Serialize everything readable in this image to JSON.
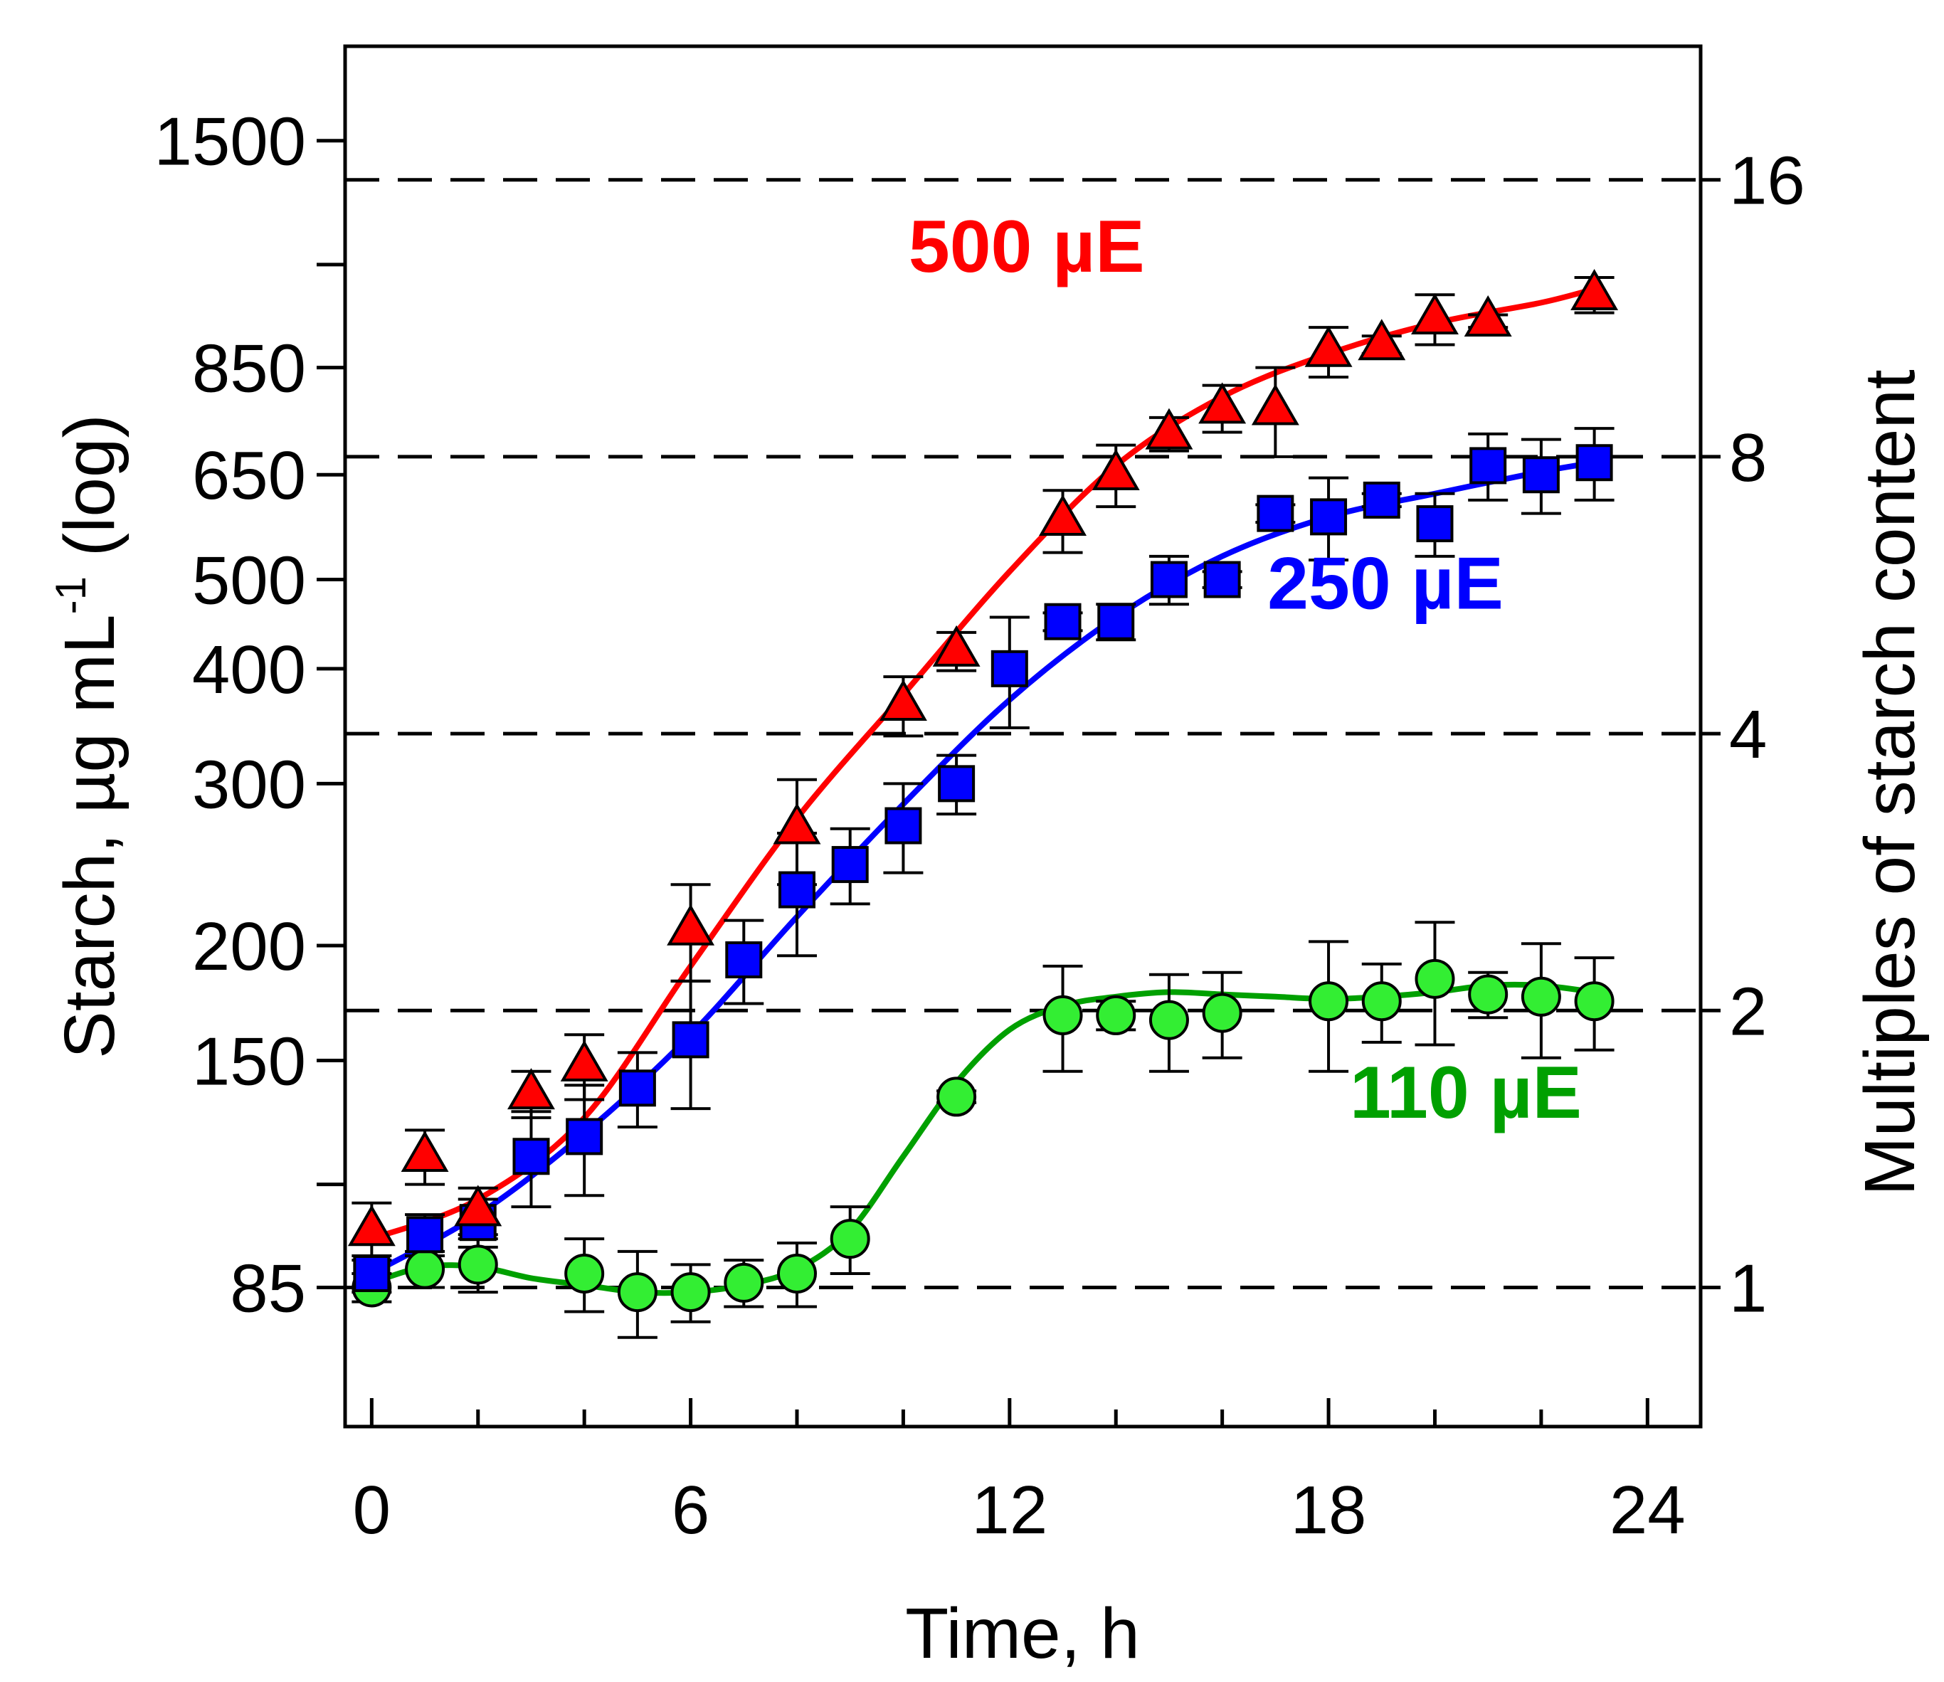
{
  "chart_data": {
    "type": "scatter",
    "xlabel": "Time, h",
    "ylabel": {
      "main": "Starch, µg mL",
      "sup": "-1",
      "tail": " (log)"
    },
    "y2label": "Multiples of starch content",
    "xlim": [
      -0.5,
      25
    ],
    "ylim": [
      60,
      1900
    ],
    "yscale": "log",
    "x_ticks": [
      0,
      6,
      12,
      18,
      24
    ],
    "x_minor_ticks": [
      0,
      2,
      4,
      6,
      8,
      10,
      12,
      14,
      16,
      18,
      20,
      22,
      24
    ],
    "y_ticks": [
      {
        "value": 85,
        "label": "85"
      },
      {
        "value": 150,
        "label": "150"
      },
      {
        "value": 200,
        "label": "200"
      },
      {
        "value": 300,
        "label": "300"
      },
      {
        "value": 400,
        "label": "400"
      },
      {
        "value": 500,
        "label": "500"
      },
      {
        "value": 650,
        "label": "650"
      },
      {
        "value": 850,
        "label": "850"
      },
      {
        "value": 1500,
        "label": "1500"
      }
    ],
    "y_minor_ticks": [
      110,
      1100
    ],
    "y2_ticks": [
      {
        "multiple": 1,
        "label": "1"
      },
      {
        "multiple": 2,
        "label": "2"
      },
      {
        "multiple": 4,
        "label": "4"
      },
      {
        "multiple": 8,
        "label": "8"
      },
      {
        "multiple": 16,
        "label": "16"
      }
    ],
    "y2_base": 85,
    "reference_lines": [
      85,
      170,
      340,
      680,
      1360
    ],
    "series": [
      {
        "name": "500 µE",
        "color": "#ff0000",
        "marker": "triangle",
        "label_anchor": {
          "x": 10.1,
          "y": 1080
        },
        "x": [
          0,
          1,
          2,
          3,
          4,
          6,
          8,
          10,
          11,
          13,
          14,
          15,
          16,
          17,
          18,
          19,
          20,
          21,
          23
        ],
        "values": [
          98,
          118,
          103,
          138,
          148,
          208,
          268,
          365,
          418,
          580,
          650,
          720,
          768,
          765,
          885,
          900,
          960,
          955,
          1020
        ],
        "errors": [
          7,
          8,
          6,
          8,
          12,
          25,
          35,
          27,
          20,
          45,
          50,
          30,
          45,
          85,
          55,
          20,
          60,
          15,
          45
        ],
        "fit": [
          [
            0,
            96
          ],
          [
            2,
            106
          ],
          [
            4,
            130
          ],
          [
            6,
            190
          ],
          [
            8,
            275
          ],
          [
            10,
            375
          ],
          [
            12,
            510
          ],
          [
            14,
            665
          ],
          [
            16,
            790
          ],
          [
            18,
            880
          ],
          [
            20,
            950
          ],
          [
            22,
            1000
          ],
          [
            23,
            1035
          ]
        ]
      },
      {
        "name": "250 µE",
        "color": "#0000ff",
        "marker": "square",
        "label_anchor": {
          "x": 16.85,
          "y": 465
        },
        "x": [
          0,
          1,
          2,
          3,
          4,
          5,
          6,
          7,
          8,
          9,
          10,
          11,
          12,
          13,
          14,
          15,
          16,
          17,
          18,
          19,
          20,
          21,
          22,
          23
        ],
        "values": [
          88,
          97,
          100,
          118,
          124,
          140,
          158,
          193,
          230,
          245,
          270,
          300,
          400,
          450,
          450,
          500,
          500,
          590,
          585,
          610,
          575,
          665,
          650,
          670
        ],
        "errors": [
          4,
          5,
          6,
          14,
          17,
          13,
          25,
          20,
          35,
          23,
          30,
          22,
          55,
          10,
          20,
          30,
          10,
          13,
          60,
          10,
          45,
          55,
          60,
          60
        ],
        "fit": [
          [
            0,
            88
          ],
          [
            2,
            102
          ],
          [
            4,
            125
          ],
          [
            6,
            160
          ],
          [
            8,
            215
          ],
          [
            10,
            285
          ],
          [
            12,
            370
          ],
          [
            14,
            455
          ],
          [
            16,
            530
          ],
          [
            18,
            585
          ],
          [
            20,
            620
          ],
          [
            22,
            655
          ],
          [
            23,
            670
          ]
        ]
      },
      {
        "name": "110 µE",
        "color": "#00a000",
        "marker": "circle",
        "label_anchor": {
          "x": 18.4,
          "y": 130
        },
        "x": [
          0,
          1,
          2,
          4,
          5,
          6,
          7,
          8,
          9,
          11,
          13,
          14,
          15,
          16,
          18,
          19,
          20,
          21,
          22,
          23
        ],
        "values": [
          85,
          89,
          90,
          88,
          84,
          84,
          86,
          88,
          96,
          137,
          168,
          168,
          166,
          169,
          174,
          174,
          184,
          177,
          176,
          174
        ],
        "errors": [
          3,
          4,
          6,
          8,
          9,
          6,
          5,
          7,
          8,
          2,
          22,
          6,
          20,
          18,
          28,
          17,
          28,
          10,
          25,
          20
        ],
        "fit": [
          [
            0,
            86
          ],
          [
            1,
            89.5
          ],
          [
            2,
            89.5
          ],
          [
            3,
            87
          ],
          [
            4,
            85.5
          ],
          [
            5,
            84
          ],
          [
            6,
            84
          ],
          [
            7,
            85.5
          ],
          [
            8,
            89
          ],
          [
            9,
            98
          ],
          [
            10,
            118
          ],
          [
            11,
            142
          ],
          [
            12,
            162
          ],
          [
            13,
            172
          ],
          [
            14,
            176
          ],
          [
            15,
            178
          ],
          [
            16,
            177
          ],
          [
            17,
            176
          ],
          [
            18,
            175
          ],
          [
            19,
            176
          ],
          [
            20,
            178
          ],
          [
            21,
            181
          ],
          [
            22,
            181
          ],
          [
            23,
            178
          ]
        ]
      }
    ]
  }
}
